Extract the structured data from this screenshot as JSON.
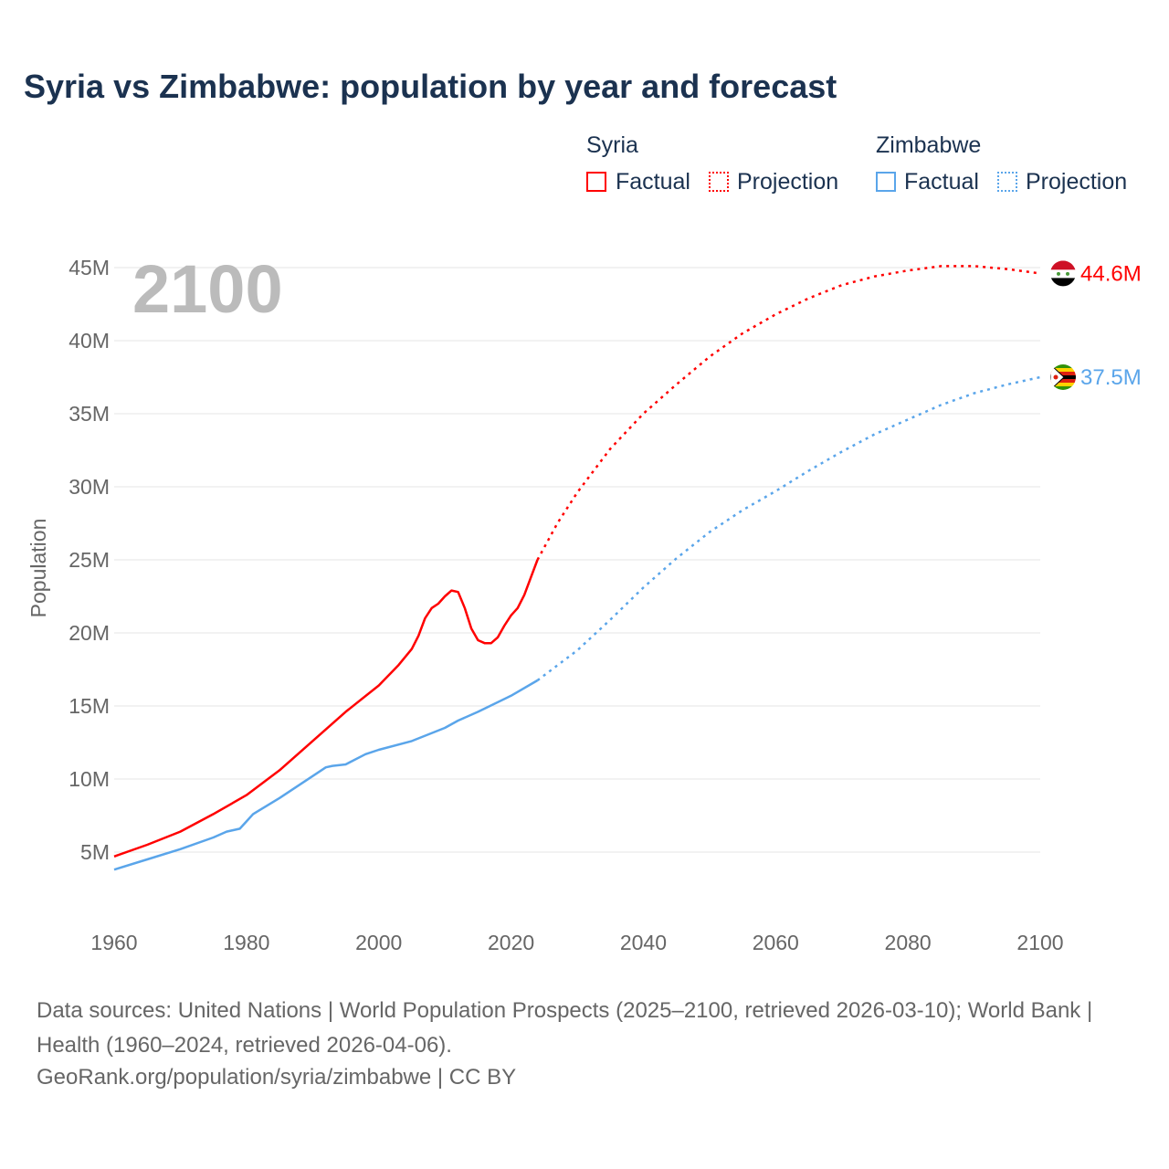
{
  "title": "Syria vs Zimbabwe: population by year and forecast",
  "legend": {
    "syria": "Syria",
    "zimbabwe": "Zimbabwe",
    "factual": "Factual",
    "projection": "Projection"
  },
  "year_display": "2100",
  "footer": {
    "sources": "Data sources: United Nations | World Population Prospects (2025–2100, retrieved 2026-03-10); World Bank | Health (1960–2024, retrieved 2026-04-06).",
    "credit": "GeoRank.org/population/syria/zimbabwe | CC BY"
  },
  "chart_data": {
    "type": "line",
    "title": "Syria vs Zimbabwe: population by year and forecast",
    "ylabel": "Population",
    "xlabel": "",
    "xlim": [
      1960,
      2100
    ],
    "ylim": [
      0,
      45
    ],
    "xticks": [
      "1960",
      "1980",
      "2000",
      "2020",
      "2040",
      "2060",
      "2080",
      "2100"
    ],
    "yticks": [
      "5M",
      "10M",
      "15M",
      "20M",
      "25M",
      "30M",
      "35M",
      "40M",
      "45M"
    ],
    "grid": true,
    "series": [
      {
        "name": "Syria",
        "color": "#ff0000",
        "end_label": "44.6M",
        "factual": [
          [
            1960,
            4.7
          ],
          [
            1965,
            5.5
          ],
          [
            1970,
            6.4
          ],
          [
            1975,
            7.6
          ],
          [
            1980,
            8.9
          ],
          [
            1985,
            10.6
          ],
          [
            1990,
            12.6
          ],
          [
            1995,
            14.6
          ],
          [
            2000,
            16.4
          ],
          [
            2003,
            17.8
          ],
          [
            2005,
            18.9
          ],
          [
            2006,
            19.8
          ],
          [
            2007,
            21.0
          ],
          [
            2008,
            21.7
          ],
          [
            2009,
            22.0
          ],
          [
            2010,
            22.5
          ],
          [
            2011,
            22.9
          ],
          [
            2012,
            22.8
          ],
          [
            2013,
            21.7
          ],
          [
            2014,
            20.3
          ],
          [
            2015,
            19.5
          ],
          [
            2016,
            19.3
          ],
          [
            2017,
            19.3
          ],
          [
            2018,
            19.7
          ],
          [
            2019,
            20.5
          ],
          [
            2020,
            21.2
          ],
          [
            2021,
            21.7
          ],
          [
            2022,
            22.6
          ],
          [
            2023,
            23.8
          ],
          [
            2024,
            25.0
          ]
        ],
        "projection": [
          [
            2024,
            25.0
          ],
          [
            2027,
            27.5
          ],
          [
            2030,
            29.6
          ],
          [
            2035,
            32.6
          ],
          [
            2040,
            35.0
          ],
          [
            2045,
            37.0
          ],
          [
            2050,
            38.9
          ],
          [
            2055,
            40.5
          ],
          [
            2060,
            41.8
          ],
          [
            2065,
            42.9
          ],
          [
            2070,
            43.8
          ],
          [
            2075,
            44.4
          ],
          [
            2080,
            44.8
          ],
          [
            2085,
            45.1
          ],
          [
            2090,
            45.1
          ],
          [
            2095,
            44.9
          ],
          [
            2100,
            44.6
          ]
        ]
      },
      {
        "name": "Zimbabwe",
        "color": "#5aa5ea",
        "end_label": "37.5M",
        "factual": [
          [
            1960,
            3.8
          ],
          [
            1965,
            4.5
          ],
          [
            1970,
            5.2
          ],
          [
            1975,
            6.0
          ],
          [
            1977,
            6.4
          ],
          [
            1979,
            6.6
          ],
          [
            1980,
            7.1
          ],
          [
            1981,
            7.6
          ],
          [
            1985,
            8.7
          ],
          [
            1990,
            10.2
          ],
          [
            1992,
            10.8
          ],
          [
            1993,
            10.9
          ],
          [
            1995,
            11.0
          ],
          [
            1998,
            11.7
          ],
          [
            2000,
            12.0
          ],
          [
            2005,
            12.6
          ],
          [
            2010,
            13.5
          ],
          [
            2012,
            14.0
          ],
          [
            2015,
            14.6
          ],
          [
            2020,
            15.7
          ],
          [
            2024,
            16.75
          ]
        ],
        "projection": [
          [
            2024,
            16.75
          ],
          [
            2030,
            18.8
          ],
          [
            2035,
            20.9
          ],
          [
            2040,
            23.1
          ],
          [
            2045,
            25.1
          ],
          [
            2050,
            26.9
          ],
          [
            2055,
            28.4
          ],
          [
            2060,
            29.7
          ],
          [
            2065,
            31.1
          ],
          [
            2070,
            32.4
          ],
          [
            2075,
            33.6
          ],
          [
            2080,
            34.6
          ],
          [
            2085,
            35.6
          ],
          [
            2090,
            36.4
          ],
          [
            2095,
            37.0
          ],
          [
            2100,
            37.5
          ]
        ]
      }
    ]
  }
}
